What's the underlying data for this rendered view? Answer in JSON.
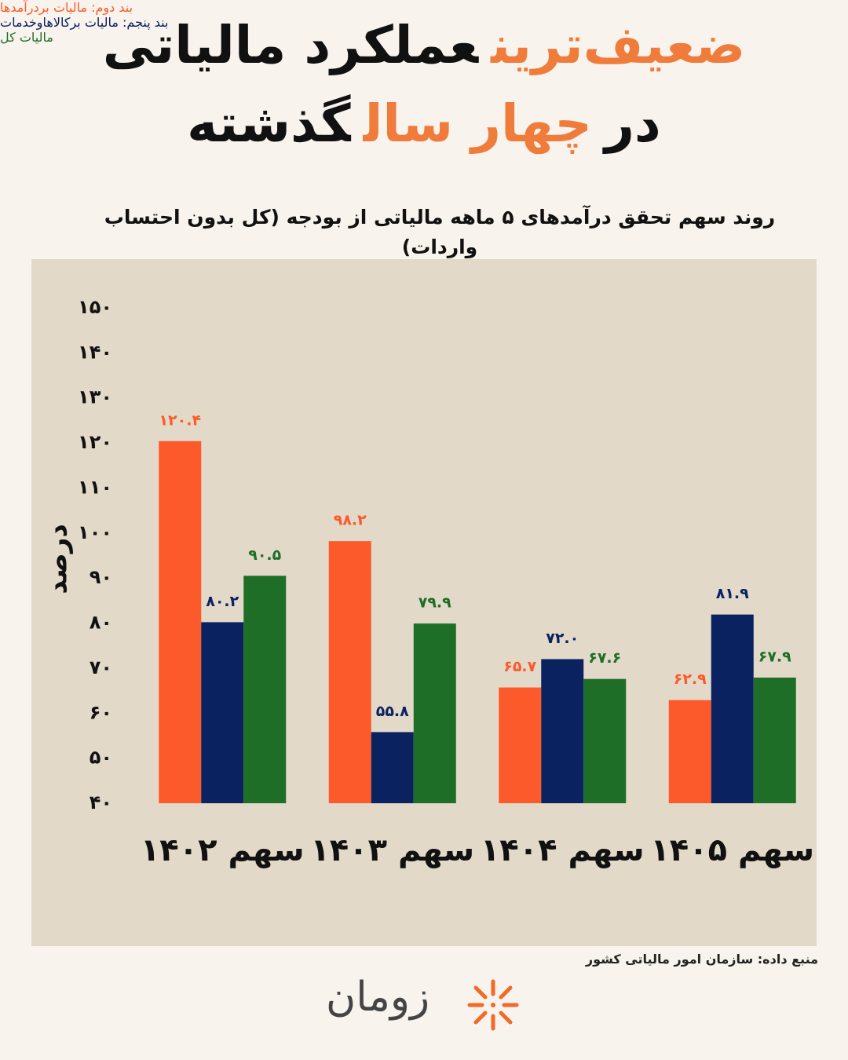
{
  "header": {
    "title_lines": [
      [
        {
          "text": "ضعیف‌ترین",
          "color": "#f07c3c"
        },
        {
          "text": "عملکرد مالیاتی",
          "color": "#111111"
        }
      ],
      [
        {
          "text": "در",
          "color": "#111111"
        },
        {
          "text": "چهار سال",
          "color": "#f07c3c"
        },
        {
          "text": "گذشته",
          "color": "#111111"
        }
      ]
    ]
  },
  "chart_data": {
    "type": "bar",
    "title": "روند سهم تحقق درآمدهای ۵ ماهه مالیاتی از بودجه (کل بدون احتساب واردات)",
    "y_label": "درصد",
    "categories": [
      "سهم ۱۴۰۲",
      "سهم ۱۴۰۳",
      "سهم ۱۴۰۴",
      "سهم ۱۴۰۵"
    ],
    "series": [
      {
        "name": "بند دوم: مالیات بردرآمدها",
        "color": "#fd5a2c",
        "values": [
          120.4,
          98.2,
          65.7,
          62.9
        ],
        "value_labels": [
          "۱۲۰.۴",
          "۹۸.۲",
          "۶۵.۷",
          "۶۲.۹"
        ]
      },
      {
        "name": "بند پنجم: مالیات برکالاهاوخدمات",
        "color": "#0b2261",
        "values": [
          80.2,
          55.8,
          72.0,
          81.9
        ],
        "value_labels": [
          "۸۰.۲",
          "۵۵.۸",
          "۷۲.۰",
          "۸۱.۹"
        ]
      },
      {
        "name": "مالیات کل",
        "color": "#1f6e28",
        "values": [
          90.5,
          79.9,
          67.6,
          67.9
        ],
        "value_labels": [
          "۹۰.۵",
          "۷۹.۹",
          "۶۷.۶",
          "۶۷.۹"
        ]
      }
    ],
    "ylim": [
      40,
      150
    ],
    "yticks": [
      {
        "value": 40,
        "label": "۴۰"
      },
      {
        "value": 50,
        "label": "۵۰"
      },
      {
        "value": 60,
        "label": "۶۰"
      },
      {
        "value": 70,
        "label": "۷۰"
      },
      {
        "value": 80,
        "label": "۸۰"
      },
      {
        "value": 90,
        "label": "۹۰"
      },
      {
        "value": 100,
        "label": "۱۰۰"
      },
      {
        "value": 110,
        "label": "۱۱۰"
      },
      {
        "value": 120,
        "label": "۱۲۰"
      },
      {
        "value": 130,
        "label": "۱۳۰"
      },
      {
        "value": 140,
        "label": "۱۴۰"
      },
      {
        "value": 150,
        "label": "۱۵۰"
      }
    ],
    "grid": false,
    "legend": "right"
  },
  "footer": {
    "source": "منبع داده: سازمان امور مالیاتی کشور",
    "logo": "زومان"
  }
}
